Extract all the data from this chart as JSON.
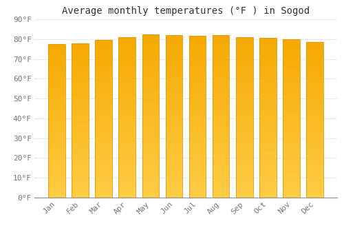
{
  "title": "Average monthly temperatures (°F ) in Sogod",
  "months": [
    "Jan",
    "Feb",
    "Mar",
    "Apr",
    "May",
    "Jun",
    "Jul",
    "Aug",
    "Sep",
    "Oct",
    "Nov",
    "Dec"
  ],
  "values": [
    77.5,
    78.0,
    79.5,
    81.0,
    82.5,
    82.0,
    81.5,
    82.0,
    81.0,
    80.5,
    79.8,
    78.5
  ],
  "ylim": [
    0,
    90
  ],
  "yticks": [
    0,
    10,
    20,
    30,
    40,
    50,
    60,
    70,
    80,
    90
  ],
  "ytick_labels": [
    "0°F",
    "10°F",
    "20°F",
    "30°F",
    "40°F",
    "50°F",
    "60°F",
    "70°F",
    "80°F",
    "90°F"
  ],
  "bar_color_bottom": "#FFCC44",
  "bar_color_top": "#F5A800",
  "bar_edge_color": "#E09900",
  "background_color": "#FFFFFF",
  "grid_color": "#E8E8E8",
  "title_fontsize": 10,
  "tick_fontsize": 8,
  "bar_width": 0.72
}
